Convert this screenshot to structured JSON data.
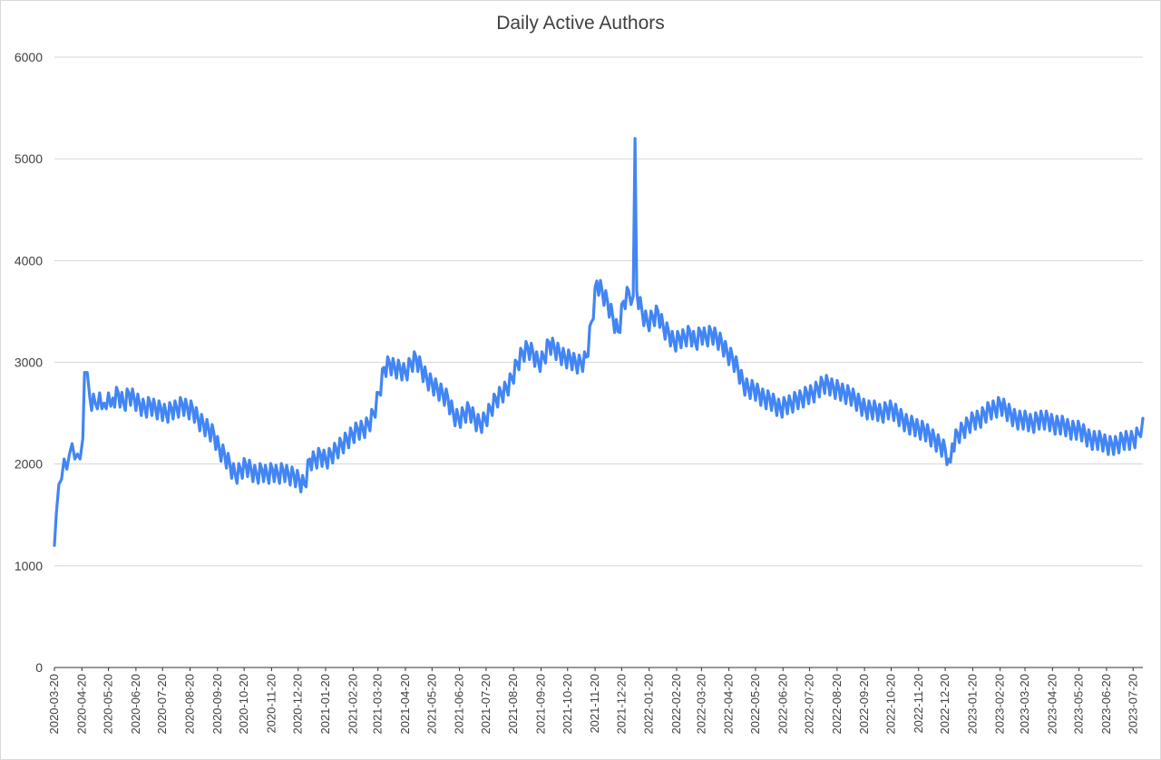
{
  "chart_data": {
    "type": "line",
    "title": "Daily Active Authors",
    "xlabel": "",
    "ylabel": "",
    "ylim": [
      0,
      6000
    ],
    "yticks": [
      "0",
      "1000",
      "2000",
      "3000",
      "4000",
      "5000",
      "6000"
    ],
    "x_start": "2020-03-20",
    "x_end": "2023-07-31",
    "grid": true,
    "legend": "none",
    "color": "#4285F4",
    "x_tick_labels": [
      "2020-03-20",
      "2020-04-20",
      "2020-05-20",
      "2020-06-20",
      "2020-07-20",
      "2020-08-20",
      "2020-09-20",
      "2020-10-20",
      "2020-11-20",
      "2020-12-20",
      "2021-01-20",
      "2021-02-20",
      "2021-03-20",
      "2021-04-20",
      "2021-05-20",
      "2021-06-20",
      "2021-07-20",
      "2021-08-20",
      "2021-09-20",
      "2021-10-20",
      "2021-11-20",
      "2021-12-20",
      "2022-01-20",
      "2022-02-20",
      "2022-03-20",
      "2022-04-20",
      "2022-05-20",
      "2022-06-20",
      "2022-07-20",
      "2022-08-20",
      "2022-09-20",
      "2022-10-20",
      "2022-11-20",
      "2022-12-20",
      "2023-01-20",
      "2023-02-20",
      "2023-03-20",
      "2023-04-20",
      "2023-05-20",
      "2023-06-20",
      "2023-07-20"
    ],
    "series": [
      {
        "values": [
          {
            "date": "2020-03-20",
            "y": 1200
          },
          {
            "date": "2020-03-22",
            "y": 1500
          },
          {
            "date": "2020-03-25",
            "y": 1800
          },
          {
            "date": "2020-03-28",
            "y": 1850
          },
          {
            "date": "2020-03-31",
            "y": 2050
          },
          {
            "date": "2020-04-03",
            "y": 1950
          },
          {
            "date": "2020-04-06",
            "y": 2100
          },
          {
            "date": "2020-04-09",
            "y": 2200
          },
          {
            "date": "2020-04-12",
            "y": 2050
          },
          {
            "date": "2020-04-15",
            "y": 2100
          },
          {
            "date": "2020-04-18",
            "y": 2050
          },
          {
            "date": "2020-04-21",
            "y": 2250
          },
          {
            "date": "2020-04-23",
            "y": 2900
          },
          {
            "date": "2020-04-26",
            "y": 2900
          },
          {
            "date": "2020-04-29",
            "y": 2650
          },
          {
            "date": "2020-05-05",
            "y": 2600
          },
          {
            "date": "2020-05-10",
            "y": 2700
          },
          {
            "date": "2020-05-15",
            "y": 2600
          },
          {
            "date": "2020-05-20",
            "y": 2700
          },
          {
            "date": "2020-05-25",
            "y": 2650
          },
          {
            "date": "2020-05-31",
            "y": 2700
          },
          {
            "date": "2020-06-06",
            "y": 2600
          },
          {
            "date": "2020-06-12",
            "y": 2700
          },
          {
            "date": "2020-06-18",
            "y": 2650
          },
          {
            "date": "2020-06-24",
            "y": 2600
          },
          {
            "date": "2020-06-30",
            "y": 2550
          },
          {
            "date": "2020-07-06",
            "y": 2600
          },
          {
            "date": "2020-07-12",
            "y": 2550
          },
          {
            "date": "2020-07-18",
            "y": 2550
          },
          {
            "date": "2020-07-24",
            "y": 2500
          },
          {
            "date": "2020-07-30",
            "y": 2550
          },
          {
            "date": "2020-08-05",
            "y": 2550
          },
          {
            "date": "2020-08-11",
            "y": 2600
          },
          {
            "date": "2020-08-17",
            "y": 2550
          },
          {
            "date": "2020-08-23",
            "y": 2550
          },
          {
            "date": "2020-08-29",
            "y": 2450
          },
          {
            "date": "2020-09-04",
            "y": 2400
          },
          {
            "date": "2020-09-10",
            "y": 2350
          },
          {
            "date": "2020-09-16",
            "y": 2300
          },
          {
            "date": "2020-09-22",
            "y": 2150
          },
          {
            "date": "2020-09-28",
            "y": 2100
          },
          {
            "date": "2020-10-04",
            "y": 2000
          },
          {
            "date": "2020-10-10",
            "y": 1900
          },
          {
            "date": "2020-10-16",
            "y": 1950
          },
          {
            "date": "2020-10-22",
            "y": 2000
          },
          {
            "date": "2020-10-28",
            "y": 1950
          },
          {
            "date": "2020-11-03",
            "y": 1900
          },
          {
            "date": "2020-11-09",
            "y": 1950
          },
          {
            "date": "2020-11-15",
            "y": 1900
          },
          {
            "date": "2020-11-21",
            "y": 1950
          },
          {
            "date": "2020-11-27",
            "y": 1900
          },
          {
            "date": "2020-12-03",
            "y": 1950
          },
          {
            "date": "2020-12-09",
            "y": 1900
          },
          {
            "date": "2020-12-15",
            "y": 1900
          },
          {
            "date": "2020-12-21",
            "y": 1850
          },
          {
            "date": "2020-12-27",
            "y": 1800
          },
          {
            "date": "2021-01-02",
            "y": 2050
          },
          {
            "date": "2021-01-08",
            "y": 2050
          },
          {
            "date": "2021-01-14",
            "y": 2100
          },
          {
            "date": "2021-01-20",
            "y": 2050
          },
          {
            "date": "2021-01-26",
            "y": 2100
          },
          {
            "date": "2021-02-01",
            "y": 2150
          },
          {
            "date": "2021-02-07",
            "y": 2200
          },
          {
            "date": "2021-02-13",
            "y": 2250
          },
          {
            "date": "2021-02-19",
            "y": 2300
          },
          {
            "date": "2021-02-25",
            "y": 2350
          },
          {
            "date": "2021-03-03",
            "y": 2350
          },
          {
            "date": "2021-03-09",
            "y": 2400
          },
          {
            "date": "2021-03-15",
            "y": 2500
          },
          {
            "date": "2021-03-21",
            "y": 2700
          },
          {
            "date": "2021-03-27",
            "y": 2950
          },
          {
            "date": "2021-04-02",
            "y": 3000
          },
          {
            "date": "2021-04-08",
            "y": 2950
          },
          {
            "date": "2021-04-14",
            "y": 2950
          },
          {
            "date": "2021-04-20",
            "y": 2900
          },
          {
            "date": "2021-04-26",
            "y": 3000
          },
          {
            "date": "2021-05-02",
            "y": 3050
          },
          {
            "date": "2021-05-08",
            "y": 2950
          },
          {
            "date": "2021-05-14",
            "y": 2850
          },
          {
            "date": "2021-05-20",
            "y": 2800
          },
          {
            "date": "2021-05-26",
            "y": 2750
          },
          {
            "date": "2021-06-01",
            "y": 2700
          },
          {
            "date": "2021-06-07",
            "y": 2650
          },
          {
            "date": "2021-06-13",
            "y": 2500
          },
          {
            "date": "2021-06-19",
            "y": 2450
          },
          {
            "date": "2021-06-25",
            "y": 2500
          },
          {
            "date": "2021-07-01",
            "y": 2550
          },
          {
            "date": "2021-07-07",
            "y": 2450
          },
          {
            "date": "2021-07-13",
            "y": 2400
          },
          {
            "date": "2021-07-19",
            "y": 2450
          },
          {
            "date": "2021-07-25",
            "y": 2550
          },
          {
            "date": "2021-07-31",
            "y": 2650
          },
          {
            "date": "2021-08-06",
            "y": 2700
          },
          {
            "date": "2021-08-12",
            "y": 2750
          },
          {
            "date": "2021-08-18",
            "y": 2850
          },
          {
            "date": "2021-08-24",
            "y": 3000
          },
          {
            "date": "2021-08-30",
            "y": 3100
          },
          {
            "date": "2021-09-05",
            "y": 3150
          },
          {
            "date": "2021-09-11",
            "y": 3100
          },
          {
            "date": "2021-09-17",
            "y": 3000
          },
          {
            "date": "2021-09-23",
            "y": 3050
          },
          {
            "date": "2021-09-29",
            "y": 3200
          },
          {
            "date": "2021-10-05",
            "y": 3150
          },
          {
            "date": "2021-10-11",
            "y": 3100
          },
          {
            "date": "2021-10-17",
            "y": 3050
          },
          {
            "date": "2021-10-23",
            "y": 3050
          },
          {
            "date": "2021-10-29",
            "y": 3000
          },
          {
            "date": "2021-11-04",
            "y": 3000
          },
          {
            "date": "2021-11-10",
            "y": 3050
          },
          {
            "date": "2021-11-16",
            "y": 3400
          },
          {
            "date": "2021-11-22",
            "y": 3800
          },
          {
            "date": "2021-11-28",
            "y": 3700
          },
          {
            "date": "2021-12-04",
            "y": 3600
          },
          {
            "date": "2021-12-10",
            "y": 3450
          },
          {
            "date": "2021-12-16",
            "y": 3300
          },
          {
            "date": "2021-12-22",
            "y": 3600
          },
          {
            "date": "2021-12-28",
            "y": 3700
          },
          {
            "date": "2022-01-02",
            "y": 3650
          },
          {
            "date": "2022-01-04",
            "y": 5200
          },
          {
            "date": "2022-01-06",
            "y": 3700
          },
          {
            "date": "2022-01-12",
            "y": 3500
          },
          {
            "date": "2022-01-18",
            "y": 3400
          },
          {
            "date": "2022-01-24",
            "y": 3450
          },
          {
            "date": "2022-01-30",
            "y": 3500
          },
          {
            "date": "2022-02-05",
            "y": 3350
          },
          {
            "date": "2022-02-11",
            "y": 3300
          },
          {
            "date": "2022-02-17",
            "y": 3200
          },
          {
            "date": "2022-02-23",
            "y": 3250
          },
          {
            "date": "2022-03-01",
            "y": 3250
          },
          {
            "date": "2022-03-07",
            "y": 3300
          },
          {
            "date": "2022-03-13",
            "y": 3200
          },
          {
            "date": "2022-03-19",
            "y": 3300
          },
          {
            "date": "2022-03-25",
            "y": 3250
          },
          {
            "date": "2022-03-31",
            "y": 3300
          },
          {
            "date": "2022-04-06",
            "y": 3250
          },
          {
            "date": "2022-04-12",
            "y": 3200
          },
          {
            "date": "2022-04-18",
            "y": 3100
          },
          {
            "date": "2022-04-24",
            "y": 3050
          },
          {
            "date": "2022-04-30",
            "y": 2950
          },
          {
            "date": "2022-05-06",
            "y": 2800
          },
          {
            "date": "2022-05-12",
            "y": 2750
          },
          {
            "date": "2022-05-18",
            "y": 2750
          },
          {
            "date": "2022-05-24",
            "y": 2700
          },
          {
            "date": "2022-05-30",
            "y": 2650
          },
          {
            "date": "2022-06-05",
            "y": 2650
          },
          {
            "date": "2022-06-11",
            "y": 2600
          },
          {
            "date": "2022-06-17",
            "y": 2550
          },
          {
            "date": "2022-06-23",
            "y": 2600
          },
          {
            "date": "2022-06-29",
            "y": 2600
          },
          {
            "date": "2022-07-05",
            "y": 2650
          },
          {
            "date": "2022-07-11",
            "y": 2650
          },
          {
            "date": "2022-07-17",
            "y": 2700
          },
          {
            "date": "2022-07-23",
            "y": 2700
          },
          {
            "date": "2022-07-29",
            "y": 2750
          },
          {
            "date": "2022-08-04",
            "y": 2800
          },
          {
            "date": "2022-08-10",
            "y": 2800
          },
          {
            "date": "2022-08-16",
            "y": 2750
          },
          {
            "date": "2022-08-22",
            "y": 2750
          },
          {
            "date": "2022-08-28",
            "y": 2700
          },
          {
            "date": "2022-09-03",
            "y": 2700
          },
          {
            "date": "2022-09-09",
            "y": 2650
          },
          {
            "date": "2022-09-15",
            "y": 2600
          },
          {
            "date": "2022-09-21",
            "y": 2550
          },
          {
            "date": "2022-09-27",
            "y": 2550
          },
          {
            "date": "2022-10-03",
            "y": 2550
          },
          {
            "date": "2022-10-09",
            "y": 2500
          },
          {
            "date": "2022-10-15",
            "y": 2550
          },
          {
            "date": "2022-10-21",
            "y": 2550
          },
          {
            "date": "2022-10-27",
            "y": 2500
          },
          {
            "date": "2022-11-02",
            "y": 2450
          },
          {
            "date": "2022-11-08",
            "y": 2400
          },
          {
            "date": "2022-11-14",
            "y": 2400
          },
          {
            "date": "2022-11-20",
            "y": 2350
          },
          {
            "date": "2022-11-26",
            "y": 2350
          },
          {
            "date": "2022-12-02",
            "y": 2300
          },
          {
            "date": "2022-12-08",
            "y": 2250
          },
          {
            "date": "2022-12-14",
            "y": 2200
          },
          {
            "date": "2022-12-20",
            "y": 2150
          },
          {
            "date": "2022-12-24",
            "y": 2050
          },
          {
            "date": "2022-12-28",
            "y": 2200
          },
          {
            "date": "2023-01-03",
            "y": 2300
          },
          {
            "date": "2023-01-09",
            "y": 2350
          },
          {
            "date": "2023-01-15",
            "y": 2400
          },
          {
            "date": "2023-01-21",
            "y": 2450
          },
          {
            "date": "2023-01-27",
            "y": 2450
          },
          {
            "date": "2023-02-02",
            "y": 2500
          },
          {
            "date": "2023-02-08",
            "y": 2550
          },
          {
            "date": "2023-02-14",
            "y": 2550
          },
          {
            "date": "2023-02-20",
            "y": 2600
          },
          {
            "date": "2023-02-26",
            "y": 2550
          },
          {
            "date": "2023-03-04",
            "y": 2500
          },
          {
            "date": "2023-03-10",
            "y": 2450
          },
          {
            "date": "2023-03-16",
            "y": 2450
          },
          {
            "date": "2023-03-22",
            "y": 2450
          },
          {
            "date": "2023-03-28",
            "y": 2400
          },
          {
            "date": "2023-04-03",
            "y": 2450
          },
          {
            "date": "2023-04-09",
            "y": 2450
          },
          {
            "date": "2023-04-15",
            "y": 2450
          },
          {
            "date": "2023-04-21",
            "y": 2400
          },
          {
            "date": "2023-04-27",
            "y": 2400
          },
          {
            "date": "2023-05-03",
            "y": 2400
          },
          {
            "date": "2023-05-09",
            "y": 2350
          },
          {
            "date": "2023-05-15",
            "y": 2350
          },
          {
            "date": "2023-05-21",
            "y": 2350
          },
          {
            "date": "2023-05-27",
            "y": 2300
          },
          {
            "date": "2023-06-02",
            "y": 2250
          },
          {
            "date": "2023-06-08",
            "y": 2250
          },
          {
            "date": "2023-06-14",
            "y": 2250
          },
          {
            "date": "2023-06-20",
            "y": 2200
          },
          {
            "date": "2023-06-26",
            "y": 2200
          },
          {
            "date": "2023-07-02",
            "y": 2200
          },
          {
            "date": "2023-07-08",
            "y": 2250
          },
          {
            "date": "2023-07-14",
            "y": 2250
          },
          {
            "date": "2023-07-20",
            "y": 2250
          },
          {
            "date": "2023-07-26",
            "y": 2300
          },
          {
            "date": "2023-07-31",
            "y": 2450
          }
        ]
      }
    ]
  }
}
